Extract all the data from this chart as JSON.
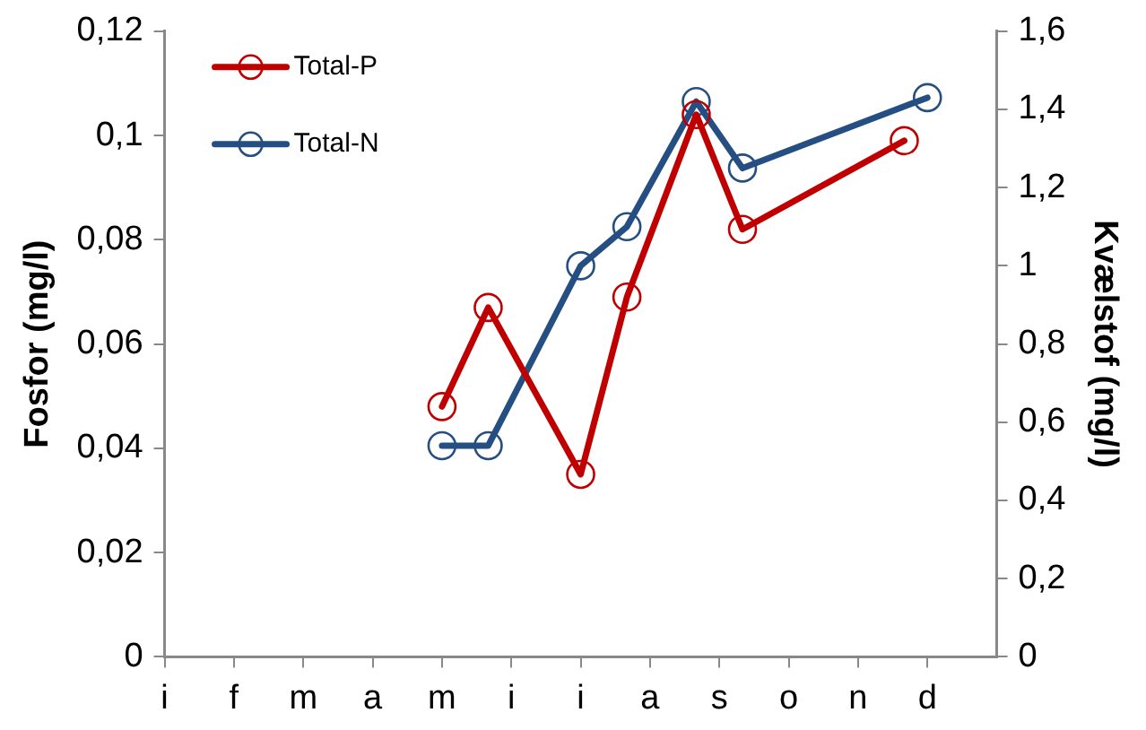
{
  "chart_data": {
    "type": "line",
    "ylabel": "Fosfor (mg/l)",
    "y2label": "Kvælstof (mg/l)",
    "categories": [
      "i",
      null,
      null,
      "f",
      null,
      null,
      "m",
      null,
      null,
      "a",
      null,
      null,
      "m",
      null,
      null,
      "i",
      null,
      null,
      "i",
      null,
      null,
      "a",
      null,
      null,
      "s",
      null,
      null,
      "o",
      null,
      null,
      "n",
      null,
      null,
      "d",
      null,
      null,
      null
    ],
    "ylim": [
      0,
      0.12
    ],
    "yticks": [
      0,
      {
        "value": 0.02,
        "label": "0,02"
      },
      {
        "value": 0.04,
        "label": "0,04"
      },
      {
        "value": 0.06,
        "label": "0,06"
      },
      {
        "value": 0.08,
        "label": "0,08"
      },
      {
        "value": 0.1,
        "label": "0,1"
      },
      {
        "value": 0.12,
        "label": "0,12"
      }
    ],
    "y2lim": [
      0,
      1.6
    ],
    "y2ticks": [
      0,
      {
        "value": 0.2,
        "label": "0,2"
      },
      {
        "value": 0.4,
        "label": "0,4"
      },
      {
        "value": 0.6,
        "label": "0,6"
      },
      {
        "value": 0.8,
        "label": "0,8"
      },
      {
        "value": 1,
        "label": "1"
      },
      {
        "value": 1.2,
        "label": "1,2"
      },
      {
        "value": 1.4,
        "label": "1,4"
      },
      {
        "value": 1.6,
        "label": "1,6"
      }
    ],
    "series": [
      {
        "name": "Total-P",
        "color": "#c00000",
        "values": [
          null,
          null,
          null,
          null,
          null,
          null,
          null,
          null,
          null,
          null,
          null,
          null,
          0.048,
          null,
          0.067,
          null,
          null,
          null,
          0.035,
          null,
          0.069,
          null,
          null,
          0.104,
          null,
          0.082,
          null,
          null,
          null,
          null,
          null,
          null,
          0.099,
          null,
          null,
          null,
          null
        ]
      },
      {
        "name": "Total-N",
        "color": "#254f82",
        "axis": "y2",
        "values": [
          null,
          null,
          null,
          null,
          null,
          null,
          null,
          null,
          null,
          null,
          null,
          null,
          0.54,
          null,
          0.54,
          null,
          null,
          null,
          1.0,
          null,
          1.1,
          null,
          null,
          1.42,
          null,
          1.25,
          null,
          null,
          null,
          null,
          null,
          null,
          null,
          1.43,
          null,
          null,
          null
        ]
      }
    ],
    "grid": false,
    "legend": "top left",
    "marker": "circle",
    "line_style": "solid"
  }
}
